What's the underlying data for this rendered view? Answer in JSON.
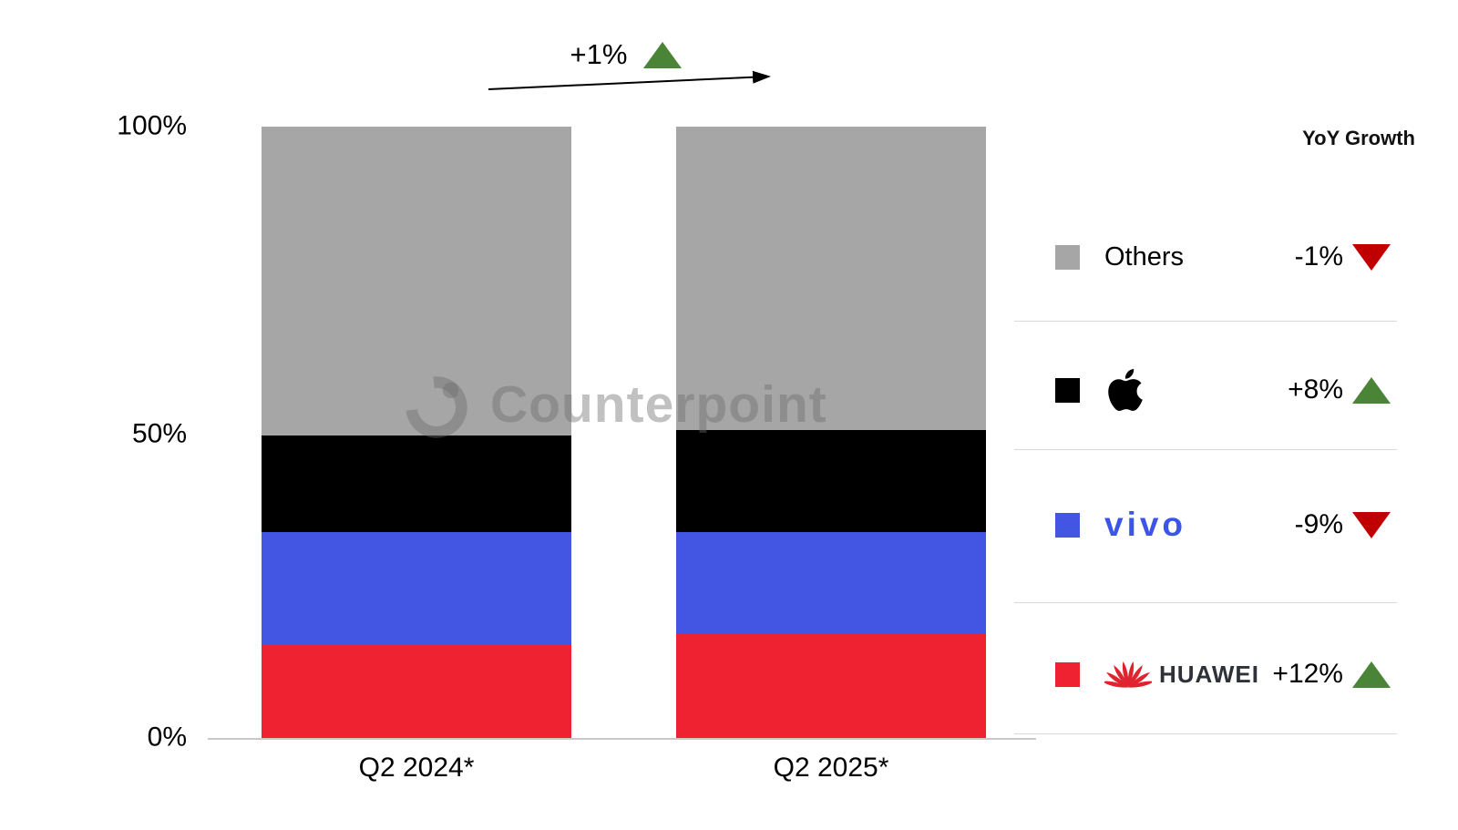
{
  "annotation": {
    "label": "+1%",
    "direction": "up"
  },
  "watermark": {
    "text": "Counterpoint"
  },
  "axis": {
    "y_ticks": [
      "100%",
      "50%",
      "0%"
    ],
    "x_labels": [
      "Q2 2024*",
      "Q2 2025*"
    ]
  },
  "legend": {
    "header": "YoY Growth",
    "rows": [
      {
        "brand": "Others",
        "label": "Others",
        "swatch": "#a6a6a6",
        "value": "-1%",
        "direction": "down"
      },
      {
        "brand": "Apple",
        "label": "",
        "swatch": "#000000",
        "value": "+8%",
        "direction": "up"
      },
      {
        "brand": "vivo",
        "label": "vivo",
        "swatch": "#4356e3",
        "value": "-9%",
        "direction": "down"
      },
      {
        "brand": "Huawei",
        "label": "HUAWEI",
        "swatch": "#ee2230",
        "value": "+12%",
        "direction": "up"
      }
    ]
  },
  "colors": {
    "green_up": "#4a8537",
    "red_down": "#c00000",
    "axis_line": "#c9c9c9"
  },
  "chart_data": {
    "type": "bar",
    "stacked": true,
    "unit": "percent share",
    "categories": [
      "Q2 2024*",
      "Q2 2025*"
    ],
    "series": [
      {
        "name": "Huawei",
        "color": "#ee2230",
        "values": [
          15.4,
          17.0
        ],
        "yoy_growth": "+12%"
      },
      {
        "name": "vivo",
        "color": "#4356e3",
        "values": [
          18.3,
          16.7
        ],
        "yoy_growth": "-9%"
      },
      {
        "name": "Apple",
        "color": "#000000",
        "values": [
          15.8,
          16.7
        ],
        "yoy_growth": "+8%"
      },
      {
        "name": "Others",
        "color": "#a6a6a6",
        "values": [
          50.5,
          49.6
        ],
        "yoy_growth": "-1%"
      }
    ],
    "ylim": [
      0,
      100
    ],
    "y_ticks": [
      0,
      50,
      100
    ],
    "grid": false,
    "legend_position": "right",
    "total_market_growth_annotation": "+1%"
  }
}
